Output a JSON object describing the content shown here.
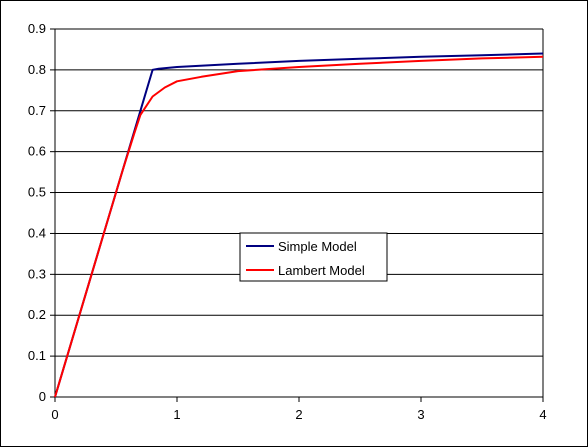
{
  "chart_data": {
    "type": "line",
    "title": "",
    "xlabel": "",
    "ylabel": "",
    "xlim": [
      0,
      4
    ],
    "ylim": [
      0,
      0.9
    ],
    "x_ticks": [
      "0",
      "1",
      "2",
      "3",
      "4"
    ],
    "y_ticks": [
      "0",
      "0.1",
      "0.2",
      "0.3",
      "0.4",
      "0.5",
      "0.6",
      "0.7",
      "0.8",
      "0.9"
    ],
    "grid": "horizontal",
    "legend_position": "center",
    "series": [
      {
        "name": "Simple Model",
        "color": "#000080",
        "x": [
          0,
          0.2,
          0.4,
          0.6,
          0.7,
          0.75,
          0.8,
          0.85,
          1.0,
          1.5,
          2.0,
          2.5,
          3.0,
          3.5,
          4.0
        ],
        "y": [
          0,
          0.2,
          0.4,
          0.6,
          0.7,
          0.75,
          0.8,
          0.803,
          0.807,
          0.815,
          0.822,
          0.827,
          0.832,
          0.836,
          0.84
        ]
      },
      {
        "name": "Lambert Model",
        "color": "#ff0000",
        "x": [
          0,
          0.2,
          0.4,
          0.55,
          0.65,
          0.7,
          0.8,
          0.9,
          1.0,
          1.2,
          1.5,
          2.0,
          2.5,
          3.0,
          3.5,
          4.0
        ],
        "y": [
          0,
          0.2,
          0.4,
          0.55,
          0.645,
          0.69,
          0.735,
          0.757,
          0.772,
          0.783,
          0.797,
          0.807,
          0.815,
          0.822,
          0.828,
          0.832
        ]
      }
    ]
  }
}
